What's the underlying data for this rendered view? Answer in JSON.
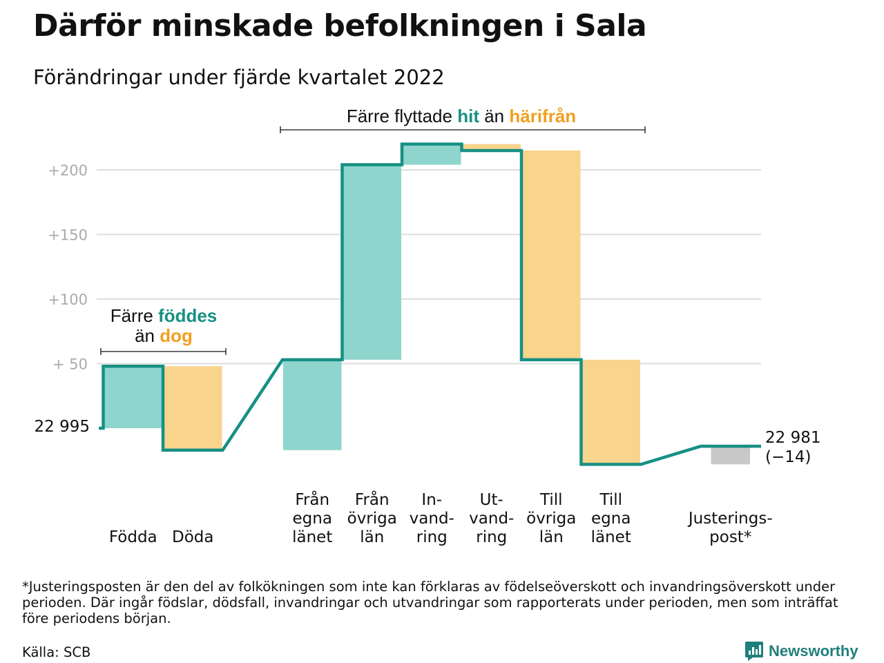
{
  "title": "Därför minskade befolkningen i Sala",
  "subtitle": "Förändringar under fjärde kvartalet 2022",
  "colors": {
    "increase": "#8ed5cd",
    "decrease": "#f9d48c",
    "adjustment": "#c8c8c8",
    "line": "#179084",
    "teal_text": "#179084",
    "orange_text": "#f0a020",
    "grid": "#dddddd",
    "tick": "#aaaaaa"
  },
  "annotations": {
    "birth": {
      "line1_pre": "Färre ",
      "line1_hl": "föddes",
      "line2_pre": "än ",
      "line2_hl": "dog"
    },
    "migration": {
      "pre": "Färre flyttade ",
      "hl1": "hit",
      "mid": " än ",
      "hl2": "härifrån"
    }
  },
  "footnote": "*Justeringsposten är den del av folkökningen som inte kan förklaras av födelseöverskott och invandringsöverskott under perioden. Där ingår födslar, dödsfall, invandringar och utvandringar som rapporterats under perioden, men som inträffat före periodens början.",
  "source": "Källa: SCB",
  "brand": {
    "name": "Newsworthy",
    "icon": "newsworthy-logo-icon"
  },
  "chart_data": {
    "type": "waterfall",
    "start_value": 22995,
    "start_label": "22 995",
    "end_label": "22 981",
    "end_change_label": "(−14)",
    "yticks": [
      {
        "value": 50,
        "label": "+ 50"
      },
      {
        "value": 100,
        "label": "+100"
      },
      {
        "value": 150,
        "label": "+150"
      },
      {
        "value": 200,
        "label": "+200"
      }
    ],
    "ylim": [
      -40,
      230
    ],
    "steps": [
      {
        "label": [
          "Födda"
        ],
        "change": 48,
        "kind": "increase"
      },
      {
        "label": [
          "Döda"
        ],
        "change": -65,
        "kind": "decrease"
      },
      {
        "label": [
          "Från",
          "egna",
          "länet"
        ],
        "change": 70,
        "kind": "increase"
      },
      {
        "label": [
          "Från",
          "övriga",
          "län"
        ],
        "change": 151,
        "kind": "increase"
      },
      {
        "label": [
          "In-",
          "vand-",
          "ring"
        ],
        "change": 16,
        "kind": "increase"
      },
      {
        "label": [
          "Ut-",
          "vand-",
          "ring"
        ],
        "change": -5,
        "kind": "decrease"
      },
      {
        "label": [
          "Till",
          "övriga",
          "län"
        ],
        "change": -162,
        "kind": "decrease"
      },
      {
        "label": [
          "Till",
          "egna",
          "länet"
        ],
        "change": -81,
        "kind": "decrease"
      },
      {
        "label": [
          "Justerings-",
          "post*"
        ],
        "change": 14,
        "kind": "adjustment"
      }
    ]
  }
}
